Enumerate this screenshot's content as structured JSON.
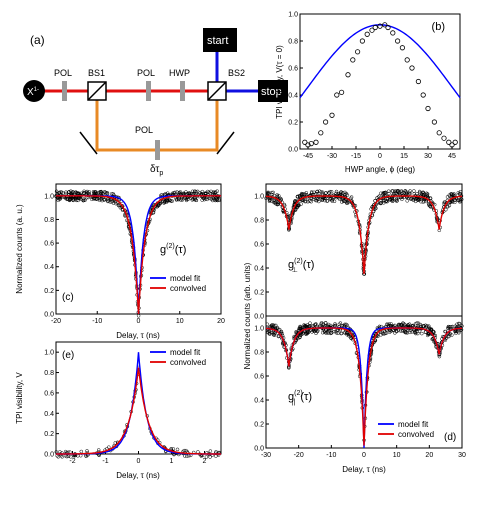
{
  "schematic": {
    "panel_label": "(a)",
    "source": "X",
    "source_sup": "1-",
    "pol1": "POL",
    "bs1": "BS1",
    "pol2": "POL",
    "hwp": "HWP",
    "bs2": "BS2",
    "pol3": "POL",
    "delay": "δτ",
    "delay_sub": "p",
    "start": "start",
    "stop": "stop"
  },
  "chart_data": [
    {
      "id": "b",
      "type": "scatter",
      "panel_label": "(b)",
      "xlabel": "HWP angle, ϕ (deg)",
      "ylabel": "TPI visibility, V(τ = 0)",
      "xlim": [
        -50,
        50
      ],
      "ylim": [
        0,
        1.0
      ],
      "xticks": [
        "-45",
        "-30",
        "-15",
        "0",
        "15",
        "30",
        "45"
      ],
      "yticks": [
        "0.0",
        "0.2",
        "0.4",
        "0.6",
        "0.8",
        "1.0"
      ],
      "series": [
        {
          "kind": "points",
          "x": [
            -47,
            -45,
            -43,
            -40,
            -37,
            -34,
            -30,
            -27,
            -24,
            -20,
            -17,
            -14,
            -11,
            -8,
            -5,
            -3,
            0,
            3,
            5,
            8,
            11,
            14,
            17,
            20,
            24,
            27,
            30,
            34,
            37,
            40,
            43,
            45,
            47
          ],
          "y": [
            0.05,
            0.03,
            0.04,
            0.05,
            0.12,
            0.2,
            0.25,
            0.4,
            0.42,
            0.55,
            0.66,
            0.72,
            0.8,
            0.85,
            0.88,
            0.9,
            0.91,
            0.92,
            0.9,
            0.86,
            0.8,
            0.75,
            0.66,
            0.6,
            0.5,
            0.4,
            0.3,
            0.2,
            0.12,
            0.08,
            0.05,
            0.03,
            0.05
          ]
        },
        {
          "kind": "fit",
          "amplitude": 0.92,
          "period_deg": 90
        }
      ]
    },
    {
      "id": "c",
      "type": "scatter",
      "panel_label": "(c)",
      "xlabel": "Delay, τ (ns)",
      "ylabel": "Normalized counts (a. u.)",
      "xlim": [
        -20,
        20
      ],
      "ylim": [
        0,
        1.1
      ],
      "xticks": [
        "-20",
        "-10",
        "0",
        "10",
        "20"
      ],
      "yticks": [
        "0.0",
        "0.2",
        "0.4",
        "0.6",
        "0.8",
        "1.0"
      ],
      "annotation": "g",
      "annotation_sup": "(2)",
      "annotation_rest": "(τ)",
      "legend": [
        "model fit",
        "convolved"
      ]
    },
    {
      "id": "e",
      "type": "scatter",
      "panel_label": "(e)",
      "xlabel": "Delay, τ (ns)",
      "ylabel": "TPI visibility, V",
      "xlim": [
        -2.5,
        2.5
      ],
      "ylim": [
        0,
        1.1
      ],
      "xticks": [
        "-2",
        "-1",
        "0",
        "1",
        "2"
      ],
      "yticks": [
        "0.0",
        "0.2",
        "0.4",
        "0.6",
        "0.8",
        "1.0"
      ],
      "legend": [
        "model fit",
        "convolved"
      ]
    },
    {
      "id": "d",
      "type": "scatter",
      "panel_label": "(d)",
      "xlabel": "Delay, τ (ns)",
      "ylabel": "Normalized counts (arb. units)",
      "xlim": [
        -30,
        30
      ],
      "ylim": [
        0,
        1.1
      ],
      "xticks": [
        "-30",
        "-20",
        "-10",
        "0",
        "10",
        "20",
        "30"
      ],
      "yticks_top": [
        "0.0",
        "0.2",
        "0.4",
        "0.6",
        "0.8",
        "1.0"
      ],
      "yticks_bottom": [
        "0.0",
        "0.2",
        "0.4",
        "0.6",
        "0.8",
        "1.0"
      ],
      "annotation_top": "g",
      "annotation_top_sub": "⊥",
      "annotation_top_sup": "(2)",
      "annotation_top_rest": "(τ)",
      "annotation_bottom": "g",
      "annotation_bottom_sub": "||",
      "annotation_bottom_sup": "(2)",
      "annotation_bottom_rest": "(τ)",
      "legend": [
        "model fit",
        "convolved"
      ]
    }
  ],
  "colors": {
    "fit": "#0000ff",
    "conv": "#e00000",
    "orange": "#e88a25",
    "red": "#e01010",
    "blue": "#1010e0"
  }
}
